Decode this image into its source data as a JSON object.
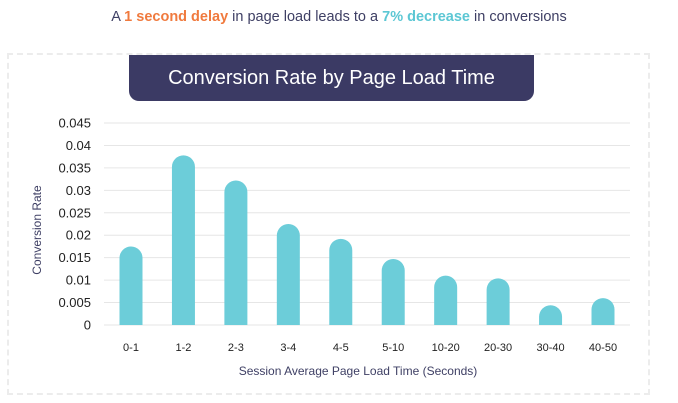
{
  "headline": {
    "prefix": "A ",
    "highlight1": "1 second delay",
    "middle": " in page load leads to a ",
    "highlight2": "7% decrease",
    "suffix": " in conversions"
  },
  "colors": {
    "bar": "#6ccdd9",
    "banner": "#3b3a64",
    "accent_orange": "#f07a3e",
    "accent_teal": "#5cc7d4",
    "grid": "#e6e6e6"
  },
  "chart_data": {
    "type": "bar",
    "title": "Conversion Rate by Page Load Time",
    "xlabel": "Session Average Page Load Time (Seconds)",
    "ylabel": "Conversion Rate",
    "categories": [
      "0-1",
      "1-2",
      "2-3",
      "3-4",
      "4-5",
      "5-10",
      "10-20",
      "20-30",
      "30-40",
      "40-50"
    ],
    "values": [
      0.0175,
      0.0378,
      0.0322,
      0.0225,
      0.0192,
      0.0147,
      0.011,
      0.0104,
      0.0044,
      0.006
    ],
    "yticks": [
      "0",
      "0.005",
      "0.01",
      "0.015",
      "0.02",
      "0.025",
      "0.03",
      "0.035",
      "0.04",
      "0.045"
    ],
    "ylim": [
      0,
      0.045
    ],
    "grid": true
  }
}
